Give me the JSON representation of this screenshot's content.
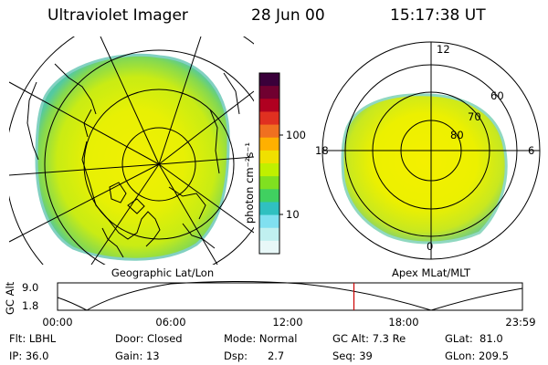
{
  "header": {
    "title": "Ultraviolet Imager",
    "date": "28 Jun 00",
    "time": "15:17:38 UT"
  },
  "colorbar": {
    "unit_label": "photon cm⁻²s⁻¹",
    "ticks": [
      {
        "label": "100",
        "value": 100
      },
      {
        "label": "10",
        "value": 10
      }
    ],
    "colors": [
      "#3a003a",
      "#700030",
      "#b00020",
      "#e03020",
      "#f07020",
      "#ffb000",
      "#f0e000",
      "#c0f000",
      "#80e020",
      "#40d060",
      "#30c0c0",
      "#80e0f0",
      "#c0f0f0",
      "#e8f8f8"
    ]
  },
  "left_panel": {
    "caption": "Geographic Lat/Lon"
  },
  "right_panel": {
    "caption": "Apex  MLat/MLT",
    "mlt_labels": {
      "top": "12",
      "left": "18",
      "right": "6",
      "bottom": "0"
    },
    "mlat_labels": [
      "60",
      "70",
      "80"
    ]
  },
  "altitude_plot": {
    "ylabel": "GC Alt",
    "yticks": [
      "9.0",
      "1.8"
    ],
    "xticks": [
      "00:00",
      "06:00",
      "12:00",
      "18:00",
      "23:59"
    ],
    "current_time_hours": 15.29,
    "marker_color": "#cc0000"
  },
  "info": {
    "col1": [
      "Flt: LBHL",
      "IP: 36.0"
    ],
    "col2": [
      "Door: Closed",
      "Gain: 13"
    ],
    "col3": [
      "Mode: Normal",
      "Dsp:      2.7"
    ],
    "col4": [
      "GC Alt: 7.3 Re",
      "Seq: 39"
    ],
    "col5": [
      "GLat:  81.0",
      "GLon: 209.5"
    ]
  }
}
